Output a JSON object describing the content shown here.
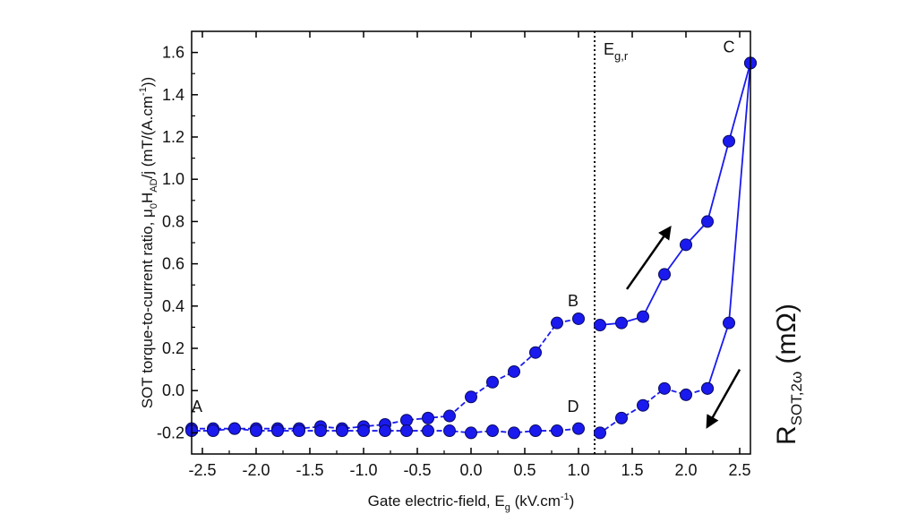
{
  "chart_data": {
    "type": "line",
    "xlabel": "Gate electric-field, E",
    "xlabel_sub": "g",
    "xlabel_unit": " (kV.cm",
    "xlabel_unit_sup": "-1",
    "xlabel_close": ")",
    "ylabel": "SOT torque-to-current ratio, μ",
    "ylabel_sub1": "0",
    "ylabel_mid": "H",
    "ylabel_sub2": "AD",
    "ylabel_tail": "/j (mT/(A.cm",
    "ylabel_sup": "-1",
    "ylabel_close": "))",
    "right_label": "R",
    "right_label_sub": "SOT,2ω",
    "right_label_unit": " (mΩ)",
    "xlim": [
      -2.6,
      2.6
    ],
    "ylim": [
      -0.3,
      1.7
    ],
    "xticks": [
      -2.5,
      -2.0,
      -1.5,
      -1.0,
      -0.5,
      0.0,
      0.5,
      1.0,
      1.5,
      2.0,
      2.5
    ],
    "xtick_labels": [
      "-2.5",
      "-2.0",
      "-1.5",
      "-1.0",
      "-0.5",
      "0.0",
      "0.5",
      "1.0",
      "1.5",
      "2.0",
      "2.5"
    ],
    "yticks": [
      -0.2,
      0.0,
      0.2,
      0.4,
      0.6,
      0.8,
      1.0,
      1.2,
      1.4,
      1.6
    ],
    "ytick_labels": [
      "-0.2",
      "0.0",
      "0.2",
      "0.4",
      "0.6",
      "0.8",
      "1.0",
      "1.2",
      "1.4",
      "1.6"
    ],
    "marker_color": "#1a1aee",
    "line_color": "#1a1aee",
    "series": [
      {
        "style": "dashed",
        "x": [
          -2.6,
          -2.4,
          -2.2,
          -2.0,
          -1.8,
          -1.6,
          -1.4,
          -1.2,
          -1.0,
          -0.8,
          -0.6,
          -0.4,
          -0.2,
          0.0,
          0.2,
          0.4,
          0.6,
          0.8,
          1.0
        ],
        "y": [
          -0.18,
          -0.18,
          -0.18,
          -0.18,
          -0.18,
          -0.18,
          -0.17,
          -0.18,
          -0.17,
          -0.16,
          -0.14,
          -0.13,
          -0.12,
          -0.03,
          0.04,
          0.09,
          0.18,
          0.32,
          0.34
        ]
      },
      {
        "style": "solid",
        "x": [
          1.2,
          1.4,
          1.6,
          1.8,
          2.0,
          2.2,
          2.4,
          2.6
        ],
        "y": [
          0.31,
          0.32,
          0.35,
          0.55,
          0.69,
          0.8,
          1.18,
          1.55
        ]
      },
      {
        "style": "solid",
        "x": [
          2.6,
          2.4,
          2.2
        ],
        "y": [
          1.55,
          0.32,
          0.01
        ]
      },
      {
        "style": "dashed",
        "x": [
          2.2,
          2.0,
          1.8,
          1.6,
          1.4,
          1.2
        ],
        "y": [
          0.01,
          -0.02,
          0.01,
          -0.07,
          -0.13,
          -0.2
        ]
      },
      {
        "style": "dashed",
        "x": [
          1.0,
          0.8,
          0.6,
          0.4,
          0.2,
          0.0,
          -0.2,
          -0.4,
          -0.6,
          -0.8,
          -1.0,
          -1.2,
          -1.4,
          -1.6,
          -1.8,
          -2.0,
          -2.2,
          -2.4,
          -2.6
        ],
        "y": [
          -0.18,
          -0.19,
          -0.19,
          -0.2,
          -0.19,
          -0.2,
          -0.19,
          -0.19,
          -0.19,
          -0.19,
          -0.19,
          -0.19,
          -0.19,
          -0.19,
          -0.19,
          -0.19,
          -0.18,
          -0.19,
          -0.19
        ]
      }
    ],
    "vline": {
      "x": 1.15,
      "label": "E",
      "label_sub": "g,r"
    },
    "point_labels": [
      {
        "text": "A",
        "x": -2.55,
        "y": -0.1
      },
      {
        "text": "B",
        "x": 0.95,
        "y": 0.4
      },
      {
        "text": "C",
        "x": 2.4,
        "y": 1.6
      },
      {
        "text": "D",
        "x": 0.95,
        "y": -0.1
      }
    ],
    "arrows": [
      {
        "x1": 1.45,
        "y1": 0.48,
        "x2": 1.85,
        "y2": 0.77
      },
      {
        "x1": 2.5,
        "y1": 0.1,
        "x2": 2.2,
        "y2": -0.17
      }
    ]
  }
}
